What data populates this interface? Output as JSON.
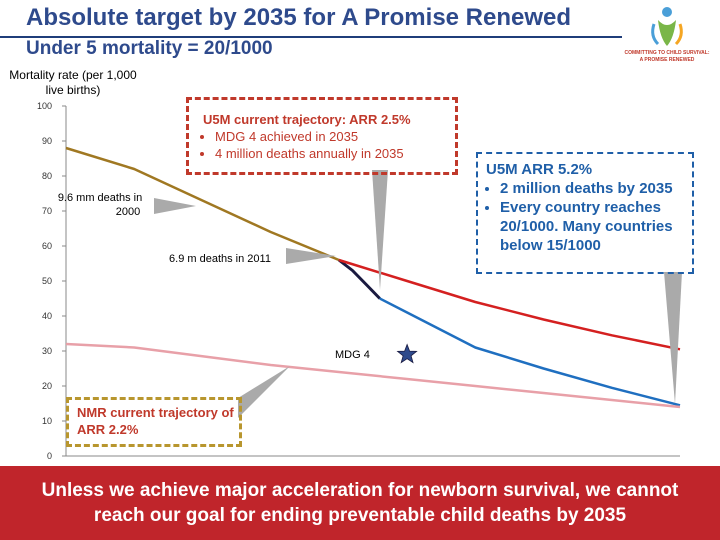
{
  "slide": {
    "title": "Absolute target by 2035 for A Promise Renewed",
    "subtitle": "Under 5 mortality = 20/1000",
    "logo_text": "COMMITTING TO CHILD SURVIVAL: A PROMISE RENEWED",
    "banner_line1": "Unless we achieve major acceleration for newborn survival, we cannot",
    "banner_line2": "reach our goal for ending preventable child deaths by 2035"
  },
  "colors": {
    "title": "#2e4a8c",
    "historical_u5mr": "#a07822",
    "recent_u5mr": "#1a1a40",
    "arr_2_5": "#d42020",
    "arr_5_2": "#1f6fc0",
    "nmr": "#e8a0a8",
    "banner": "#c0252b"
  },
  "annotations": {
    "box_current": {
      "heading": "U5M current trajectory:  ARR 2.5%",
      "bullets": [
        "MDG 4 achieved in 2035",
        "4 million deaths annually in 2035"
      ]
    },
    "box_accelerated": {
      "heading": "U5M ARR 5.2%",
      "bullets": [
        "2 million deaths by 2035",
        "Every country reaches 20/1000. Many countries below 15/1000"
      ]
    },
    "box_nmr": {
      "heading": "NMR current trajectory of ARR 2.2%"
    },
    "deaths_2000": "9.6 mm deaths in 2000",
    "deaths_2011": "6.9 m deaths in 2011",
    "mdg4": "MDG 4"
  },
  "chart_data": {
    "type": "line",
    "ylabel": "Mortality rate (per 1,000 live births)",
    "ylim": [
      0,
      100
    ],
    "yticks": [
      0,
      10,
      20,
      30,
      40,
      50,
      60,
      70,
      80,
      90,
      100
    ],
    "xlim": [
      1990,
      2035
    ],
    "grid": false,
    "series": [
      {
        "key": "historical_u5mr",
        "x": [
          1990,
          1995,
          2000,
          2005,
          2010
        ],
        "y": [
          88,
          82,
          73,
          64,
          56
        ]
      },
      {
        "key": "recent_u5mr",
        "x": [
          2010,
          2011,
          2012,
          2013
        ],
        "y": [
          56,
          53,
          49,
          45
        ]
      },
      {
        "key": "arr_2_5",
        "x": [
          2010,
          2015,
          2020,
          2025,
          2030,
          2035
        ],
        "y": [
          56,
          50,
          44,
          39,
          34.5,
          30.5
        ]
      },
      {
        "key": "arr_5_2",
        "x": [
          2013,
          2015,
          2020,
          2025,
          2030,
          2035
        ],
        "y": [
          45,
          41,
          31,
          25,
          19.5,
          14.5
        ]
      },
      {
        "key": "nmr",
        "x": [
          1990,
          1995,
          2000,
          2005,
          2010,
          2015,
          2020,
          2025,
          2030,
          2035
        ],
        "y": [
          32,
          31,
          28.5,
          26,
          24,
          22,
          20,
          18,
          16,
          14
        ]
      }
    ],
    "markers": [
      {
        "label": "MDG 4 target",
        "x": 2015,
        "y": 29,
        "shape": "star",
        "color": "#2e4a8c"
      }
    ]
  }
}
